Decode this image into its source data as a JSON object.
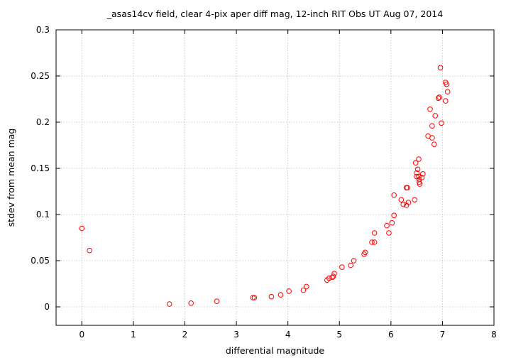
{
  "chart_data": {
    "type": "scatter",
    "title": "_asas14cv field, clear 4-pix aper diff mag,  12-inch RIT Obs UT Aug 07, 2014",
    "xlabel": "differential magnitude",
    "ylabel": "stdev from mean mag",
    "xlim": [
      -0.5,
      8
    ],
    "ylim": [
      -0.02,
      0.3
    ],
    "xticks": [
      0,
      1,
      2,
      3,
      4,
      5,
      6,
      7,
      8
    ],
    "xtick_labels": [
      "0",
      "1",
      "2",
      "3",
      "4",
      "5",
      "6",
      "7",
      "8"
    ],
    "yticks": [
      0,
      0.05,
      0.1,
      0.15,
      0.2,
      0.25,
      0.3
    ],
    "ytick_labels": [
      "0",
      "0.05",
      "0.1",
      "0.15",
      "0.2",
      "0.25",
      "0.3"
    ],
    "grid": true,
    "marker": "open-circle",
    "color": "#ff0000",
    "points": [
      [
        0.0,
        0.085
      ],
      [
        0.15,
        0.061
      ],
      [
        1.7,
        0.003
      ],
      [
        2.12,
        0.004
      ],
      [
        2.62,
        0.006
      ],
      [
        3.32,
        0.01
      ],
      [
        3.35,
        0.01
      ],
      [
        3.68,
        0.011
      ],
      [
        3.86,
        0.013
      ],
      [
        4.02,
        0.017
      ],
      [
        4.3,
        0.018
      ],
      [
        4.36,
        0.022
      ],
      [
        4.76,
        0.029
      ],
      [
        4.8,
        0.031
      ],
      [
        4.86,
        0.032
      ],
      [
        4.88,
        0.033
      ],
      [
        4.9,
        0.036
      ],
      [
        5.05,
        0.043
      ],
      [
        5.22,
        0.045
      ],
      [
        5.28,
        0.05
      ],
      [
        5.48,
        0.057
      ],
      [
        5.5,
        0.059
      ],
      [
        5.63,
        0.07
      ],
      [
        5.68,
        0.07
      ],
      [
        5.68,
        0.08
      ],
      [
        5.92,
        0.088
      ],
      [
        5.96,
        0.08
      ],
      [
        6.02,
        0.091
      ],
      [
        6.06,
        0.099
      ],
      [
        6.06,
        0.121
      ],
      [
        6.2,
        0.116
      ],
      [
        6.24,
        0.111
      ],
      [
        6.3,
        0.11
      ],
      [
        6.3,
        0.129
      ],
      [
        6.32,
        0.129
      ],
      [
        6.34,
        0.113
      ],
      [
        6.46,
        0.116
      ],
      [
        6.48,
        0.156
      ],
      [
        6.5,
        0.145
      ],
      [
        6.5,
        0.141
      ],
      [
        6.52,
        0.149
      ],
      [
        6.54,
        0.16
      ],
      [
        6.54,
        0.141
      ],
      [
        6.55,
        0.138
      ],
      [
        6.55,
        0.135
      ],
      [
        6.56,
        0.133
      ],
      [
        6.6,
        0.14
      ],
      [
        6.62,
        0.144
      ],
      [
        6.72,
        0.185
      ],
      [
        6.76,
        0.214
      ],
      [
        6.8,
        0.196
      ],
      [
        6.8,
        0.183
      ],
      [
        6.84,
        0.176
      ],
      [
        6.86,
        0.207
      ],
      [
        6.92,
        0.226
      ],
      [
        6.94,
        0.227
      ],
      [
        6.96,
        0.259
      ],
      [
        6.98,
        0.199
      ],
      [
        7.06,
        0.223
      ],
      [
        7.06,
        0.243
      ],
      [
        7.08,
        0.241
      ],
      [
        7.1,
        0.233
      ]
    ]
  }
}
